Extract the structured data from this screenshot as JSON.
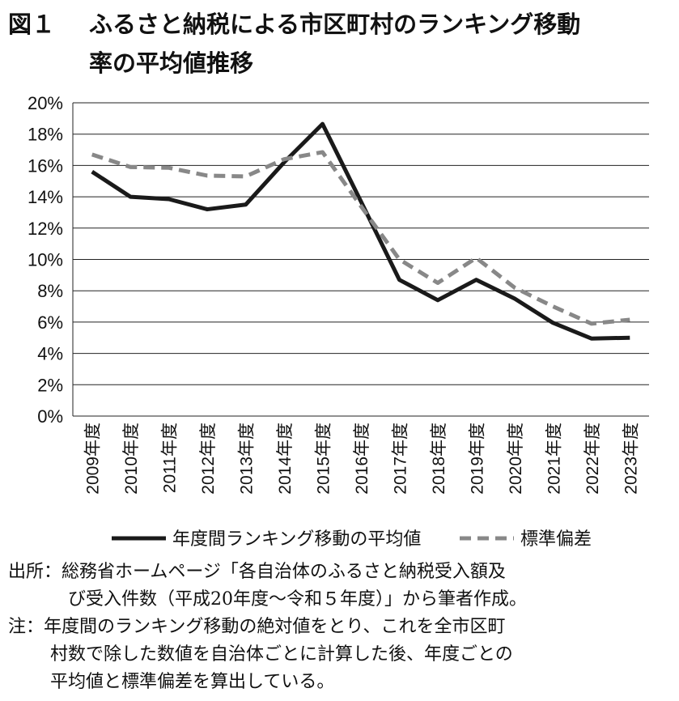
{
  "title": {
    "figure_label": "図１",
    "line1": "ふるさと納税による市区町村のランキング移動",
    "line2": "率の平均値推移"
  },
  "chart_data": {
    "type": "line",
    "title": "ふるさと納税による市区町村のランキング移動率の平均値推移",
    "xlabel": "",
    "ylabel": "",
    "categories": [
      "2009年度",
      "2010年度",
      "2011年度",
      "2012年度",
      "2013年度",
      "2014年度",
      "2015年度",
      "2016年度",
      "2017年度",
      "2018年度",
      "2019年度",
      "2020年度",
      "2021年度",
      "2022年度",
      "2023年度"
    ],
    "yticks": [
      "0%",
      "2%",
      "4%",
      "6%",
      "8%",
      "10%",
      "12%",
      "14%",
      "16%",
      "18%",
      "20%"
    ],
    "ylim": [
      0,
      20
    ],
    "grid": true,
    "legend_position": "bottom",
    "series": [
      {
        "name": "年度間ランキング移動の平均値",
        "style": "solid",
        "color": "#1a1a1a",
        "values": [
          15.6,
          14.0,
          13.85,
          13.2,
          13.5,
          16.2,
          18.65,
          13.7,
          8.7,
          7.4,
          8.7,
          7.5,
          5.95,
          4.95,
          5.0
        ]
      },
      {
        "name": "標準偏差",
        "style": "dashed",
        "color": "#888888",
        "values": [
          16.7,
          15.9,
          15.85,
          15.35,
          15.3,
          16.4,
          16.85,
          13.4,
          10.0,
          8.5,
          10.1,
          8.2,
          7.0,
          5.9,
          6.15
        ]
      }
    ]
  },
  "notes": {
    "source_line1": "出所：総務省ホームページ「各自治体のふるさと納税受入額及",
    "source_line2": "び受入件数（平成20年度～令和５年度）」から筆者作成。",
    "note_line1": "注：年度間のランキング移動の絶対値をとり、これを全市区町",
    "note_line2": "村数で除した数値を自治体ごとに計算した後、年度ごとの",
    "note_line3": "平均値と標準偏差を算出している。"
  }
}
